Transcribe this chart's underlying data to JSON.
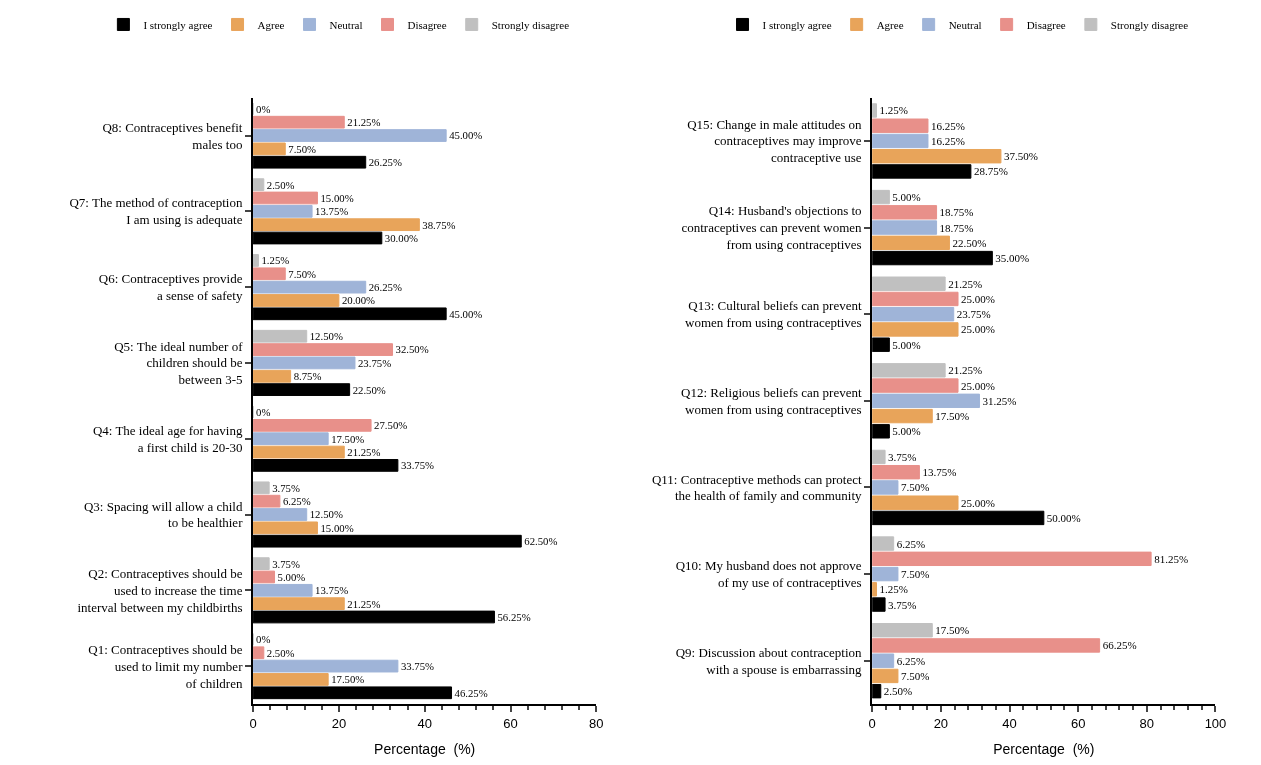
{
  "chart_data": [
    {
      "type": "bar",
      "orientation": "horizontal",
      "xlabel": "Percentage  (%)",
      "xlim": [
        0,
        80
      ],
      "xticks": [
        0,
        20,
        40,
        60,
        80
      ],
      "legend": "top",
      "categories": [
        "Q8: Contraceptives benefit\nmales too",
        "Q7: The method of contraception\nI am using is adequate",
        "Q6: Contraceptives provide\na sense of safety",
        "Q5: The ideal number of\nchildren should be\nbetween 3-5",
        "Q4: The ideal age for having\na first child is 20-30",
        "Q3: Spacing will allow a child\nto be healthier",
        "Q2: Contraceptives should be\nused to increase the time\ninterval between my childbirths",
        "Q1: Contraceptives should be\nused to limit my number\nof children"
      ],
      "series": [
        {
          "name": "I strongly agree",
          "color": "#000000",
          "values": [
            26.25,
            30.0,
            45.0,
            22.5,
            33.75,
            62.5,
            56.25,
            46.25
          ],
          "value_labels": [
            "26.25%",
            "30.00%",
            "45.00%",
            "22.50%",
            "33.75%",
            "62.50%",
            "56.25%",
            "46.25%"
          ]
        },
        {
          "name": "Agree",
          "color": "#e8a45a",
          "values": [
            7.5,
            38.75,
            20.0,
            8.75,
            21.25,
            15.0,
            21.25,
            17.5
          ],
          "value_labels": [
            "7.50%",
            "38.75%",
            "20.00%",
            "8.75%",
            "21.25%",
            "15.00%",
            "21.25%",
            "17.50%"
          ]
        },
        {
          "name": "Neutral",
          "color": "#9fb4d8",
          "values": [
            45.0,
            13.75,
            26.25,
            23.75,
            17.5,
            12.5,
            13.75,
            33.75
          ],
          "value_labels": [
            "45.00%",
            "13.75%",
            "26.25%",
            "23.75%",
            "17.50%",
            "12.50%",
            "13.75%",
            "33.75%"
          ]
        },
        {
          "name": "Disagree",
          "color": "#e8908a",
          "values": [
            21.25,
            15.0,
            7.5,
            32.5,
            27.5,
            6.25,
            5.0,
            2.5
          ],
          "value_labels": [
            "21.25%",
            "15.00%",
            "7.50%",
            "32.50%",
            "27.50%",
            "6.25%",
            "5.00%",
            "2.50%"
          ]
        },
        {
          "name": "Strongly disagree",
          "color": "#c0c0c0",
          "values": [
            0,
            2.5,
            1.25,
            12.5,
            0,
            3.75,
            3.75,
            0
          ],
          "value_labels": [
            "0%",
            "2.50%",
            "1.25%",
            "12.50%",
            "0%",
            "3.75%",
            "3.75%",
            "0%"
          ]
        }
      ]
    },
    {
      "type": "bar",
      "orientation": "horizontal",
      "xlabel": "Percentage  (%)",
      "xlim": [
        0,
        100
      ],
      "xticks": [
        0,
        20,
        40,
        60,
        80,
        100
      ],
      "legend": "top",
      "categories": [
        "Q15: Change in male attitudes on\ncontraceptives may improve\ncontraceptive use",
        "Q14: Husband's objections to\ncontraceptives can prevent women\nfrom using contraceptives",
        "Q13: Cultural beliefs can prevent\nwomen from using contraceptives",
        "Q12: Religious beliefs can prevent\nwomen from using contraceptives",
        "Q11: Contraceptive methods can protect\nthe health of family and community",
        "Q10: My husband does not approve\nof my use of contraceptives",
        "Q9: Discussion about contraception\nwith a spouse is embarrassing"
      ],
      "series": [
        {
          "name": "I strongly agree",
          "color": "#000000",
          "values": [
            28.75,
            35.0,
            5.0,
            5.0,
            50.0,
            3.75,
            2.5
          ],
          "value_labels": [
            "28.75%",
            "35.00%",
            "5.00%",
            "5.00%",
            "50.00%",
            "3.75%",
            "2.50%"
          ]
        },
        {
          "name": "Agree",
          "color": "#e8a45a",
          "values": [
            37.5,
            22.5,
            25.0,
            17.5,
            25.0,
            1.25,
            7.5
          ],
          "value_labels": [
            "37.50%",
            "22.50%",
            "25.00%",
            "17.50%",
            "25.00%",
            "1.25%",
            "7.50%"
          ]
        },
        {
          "name": "Neutral",
          "color": "#9fb4d8",
          "values": [
            16.25,
            18.75,
            23.75,
            31.25,
            7.5,
            7.5,
            6.25
          ],
          "value_labels": [
            "16.25%",
            "18.75%",
            "23.75%",
            "31.25%",
            "7.50%",
            "7.50%",
            "6.25%"
          ]
        },
        {
          "name": "Disagree",
          "color": "#e8908a",
          "values": [
            16.25,
            18.75,
            25.0,
            25.0,
            13.75,
            81.25,
            66.25
          ],
          "value_labels": [
            "16.25%",
            "18.75%",
            "25.00%",
            "25.00%",
            "13.75%",
            "81.25%",
            "66.25%"
          ]
        },
        {
          "name": "Strongly disagree",
          "color": "#c0c0c0",
          "values": [
            1.25,
            5.0,
            21.25,
            21.25,
            3.75,
            6.25,
            17.5
          ],
          "value_labels": [
            "1.25%",
            "5.00%",
            "21.25%",
            "21.25%",
            "3.75%",
            "6.25%",
            "17.50%"
          ]
        }
      ]
    }
  ]
}
